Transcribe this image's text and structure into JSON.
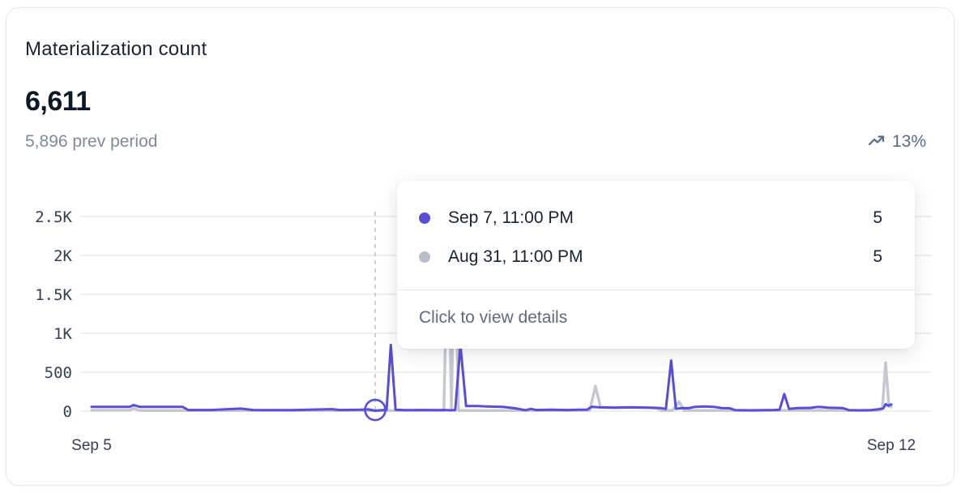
{
  "card": {
    "title": "Materialization count",
    "value": "6,611",
    "prev_period": "5,896 prev period",
    "trend_percent": "13%"
  },
  "tooltip": {
    "rows": [
      {
        "series": "current",
        "date": "Sep 7, 11:00 PM",
        "value": "5"
      },
      {
        "series": "previous",
        "date": "Aug 31, 11:00 PM",
        "value": "5"
      }
    ],
    "footer": "Click to view details"
  },
  "colors": {
    "current": "#584ED8",
    "previous": "#C5C8D1",
    "dot_previous": "#B8BDC7",
    "grid": "#E8EAEF",
    "axis_text": "#343F53",
    "crosshair": "#BFC4CE",
    "card_border": "#E5E7EB",
    "title": "#1A2433",
    "value": "#0D1826",
    "muted": "#7E8A9C",
    "trend": "#5A6A85",
    "tooltip_text": "#18222F",
    "tooltip_muted": "#5E6A7D"
  },
  "chart_data": {
    "type": "line",
    "title": "Materialization count",
    "xlabel": "",
    "ylabel": "",
    "grid": true,
    "x_axis": {
      "unit": "hours since Sep 5 12:00 AM",
      "range": [
        0,
        168.9
      ],
      "ticks": [
        {
          "hour": 0,
          "label": "Sep 5"
        },
        {
          "hour": 168.9,
          "label": "Sep 12"
        }
      ]
    },
    "y_axis": {
      "range": [
        0,
        2600
      ],
      "ticks": [
        {
          "value": 0,
          "label": "0"
        },
        {
          "value": 500,
          "label": "500"
        },
        {
          "value": 1000,
          "label": "1K"
        },
        {
          "value": 1500,
          "label": "1.5K"
        },
        {
          "value": 2000,
          "label": "2K"
        },
        {
          "value": 2500,
          "label": "2.5K"
        }
      ]
    },
    "hover": {
      "hour": 59.9,
      "value": 5,
      "current_label": "Sep 7, 11:00 PM",
      "current_value": 5,
      "previous_label": "Aug 31, 11:00 PM",
      "previous_value": 5
    },
    "series": [
      {
        "name": "previous",
        "color_key": "previous",
        "points": [
          [
            0,
            10
          ],
          [
            8,
            10
          ],
          [
            8.9,
            35
          ],
          [
            10.1,
            8
          ],
          [
            23.4,
            8
          ],
          [
            40.6,
            8
          ],
          [
            57.7,
            8
          ],
          [
            59.9,
            5
          ],
          [
            66.2,
            8
          ],
          [
            73.9,
            8
          ],
          [
            74.4,
            8
          ],
          [
            75.3,
            2550
          ],
          [
            76,
            30
          ],
          [
            76.7,
            2500
          ],
          [
            77.5,
            8
          ],
          [
            83.3,
            8
          ],
          [
            91.9,
            8
          ],
          [
            100.4,
            8
          ],
          [
            105.2,
            10
          ],
          [
            106.4,
            320
          ],
          [
            107.5,
            50
          ],
          [
            110.7,
            45
          ],
          [
            114.2,
            48
          ],
          [
            117.6,
            45
          ],
          [
            119.3,
            40
          ],
          [
            120.3,
            8
          ],
          [
            122.7,
            8
          ],
          [
            124.1,
            120
          ],
          [
            125.1,
            8
          ],
          [
            134.7,
            8
          ],
          [
            143.3,
            8
          ],
          [
            151.8,
            10
          ],
          [
            160.4,
            8
          ],
          [
            166.3,
            8
          ],
          [
            167,
            30
          ],
          [
            167.7,
            620
          ],
          [
            168.4,
            60
          ],
          [
            168.9,
            55
          ]
        ]
      },
      {
        "name": "current",
        "color_key": "current",
        "points": [
          [
            0,
            55
          ],
          [
            4.6,
            55
          ],
          [
            8,
            55
          ],
          [
            8.9,
            78
          ],
          [
            10.1,
            55
          ],
          [
            19.2,
            55
          ],
          [
            20.4,
            15
          ],
          [
            25.2,
            15
          ],
          [
            31.5,
            32
          ],
          [
            34.1,
            15
          ],
          [
            42.3,
            12
          ],
          [
            50.8,
            25
          ],
          [
            52.5,
            15
          ],
          [
            56.8,
            18
          ],
          [
            58.5,
            22
          ],
          [
            59.9,
            5
          ],
          [
            61.4,
            12
          ],
          [
            62.3,
            20
          ],
          [
            63.2,
            850
          ],
          [
            64.2,
            18
          ],
          [
            66.2,
            12
          ],
          [
            69.7,
            15
          ],
          [
            73.1,
            12
          ],
          [
            74.4,
            15
          ],
          [
            75.8,
            10
          ],
          [
            76.8,
            12
          ],
          [
            77.9,
            850
          ],
          [
            79.1,
            65
          ],
          [
            81.6,
            65
          ],
          [
            83.3,
            60
          ],
          [
            86.8,
            55
          ],
          [
            89.3,
            38
          ],
          [
            91.6,
            12
          ],
          [
            92.8,
            28
          ],
          [
            93.9,
            15
          ],
          [
            97,
            18
          ],
          [
            100.4,
            15
          ],
          [
            103,
            18
          ],
          [
            104.7,
            20
          ],
          [
            105.6,
            55
          ],
          [
            107.3,
            48
          ],
          [
            110.7,
            45
          ],
          [
            114.2,
            48
          ],
          [
            117.6,
            45
          ],
          [
            120.1,
            40
          ],
          [
            121.3,
            28
          ],
          [
            122.4,
            650
          ],
          [
            123.4,
            30
          ],
          [
            124.8,
            40
          ],
          [
            126.1,
            38
          ],
          [
            127.5,
            55
          ],
          [
            129.5,
            60
          ],
          [
            131.3,
            55
          ],
          [
            133,
            40
          ],
          [
            134.7,
            38
          ],
          [
            136,
            12
          ],
          [
            139,
            10
          ],
          [
            142.4,
            12
          ],
          [
            144.1,
            15
          ],
          [
            145.3,
            18
          ],
          [
            146.3,
            220
          ],
          [
            147.3,
            28
          ],
          [
            149.2,
            40
          ],
          [
            151.8,
            42
          ],
          [
            153.5,
            55
          ],
          [
            155.6,
            45
          ],
          [
            158.6,
            40
          ],
          [
            160,
            12
          ],
          [
            162.1,
            10
          ],
          [
            164.6,
            12
          ],
          [
            166.3,
            25
          ],
          [
            167.2,
            35
          ],
          [
            167.7,
            90
          ],
          [
            168.2,
            70
          ],
          [
            168.9,
            85
          ]
        ]
      }
    ],
    "legend": false
  }
}
